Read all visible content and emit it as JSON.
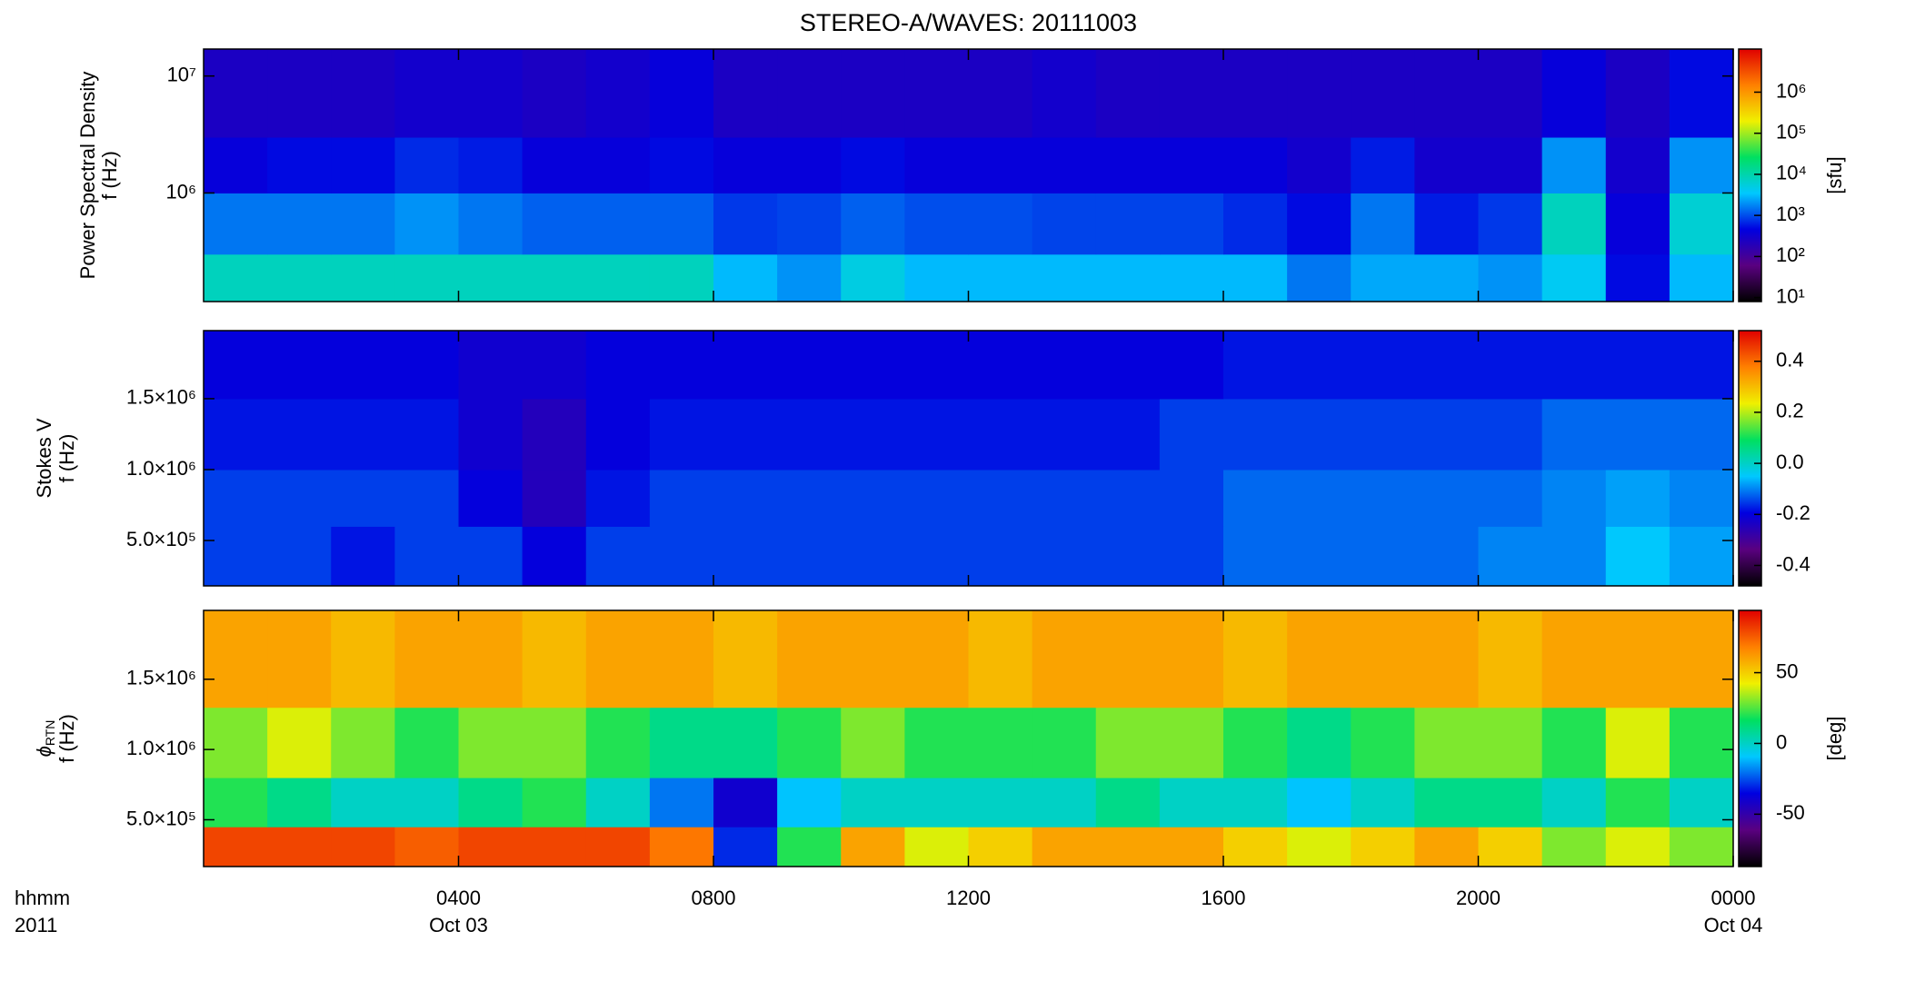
{
  "chart_data": [
    {
      "type": "heatmap",
      "title": "STEREO-A/WAVES: 20111003",
      "ylabel": [
        "Power Spectral Density",
        "f (Hz)"
      ],
      "x_edges": [
        0,
        1,
        2,
        3,
        4,
        5,
        6,
        7,
        8,
        9,
        10,
        11,
        12,
        13,
        14,
        15,
        16,
        17,
        18,
        19,
        20,
        21,
        22,
        23,
        24
      ],
      "y_edges": [
        118000,
        300000,
        1000000,
        3000000,
        17000000
      ],
      "z": [
        [
          8000,
          8000,
          8000,
          8000,
          8000,
          8000,
          8000,
          8000,
          3000,
          2000,
          5000,
          3000,
          3000,
          3000,
          3000,
          3000,
          3000,
          1500,
          2500,
          2500,
          2000,
          4000,
          500,
          3000
        ],
        [
          1500,
          1500,
          1500,
          2000,
          1500,
          1200,
          1200,
          1200,
          800,
          900,
          1200,
          1000,
          1000,
          900,
          900,
          900,
          700,
          500,
          1500,
          600,
          800,
          8000,
          400,
          6000
        ],
        [
          400,
          500,
          500,
          700,
          600,
          400,
          400,
          500,
          400,
          400,
          500,
          400,
          400,
          400,
          400,
          400,
          400,
          300,
          600,
          300,
          300,
          2000,
          300,
          2000
        ],
        [
          250,
          250,
          250,
          300,
          300,
          250,
          300,
          400,
          250,
          250,
          250,
          250,
          250,
          300,
          250,
          250,
          250,
          250,
          250,
          250,
          250,
          400,
          250,
          500
        ]
      ],
      "xlim": [
        0,
        24
      ],
      "ylim": [
        118000,
        17000000
      ],
      "ylog": true,
      "yticks": [
        {
          "value": 1000000,
          "label": "10⁶"
        },
        {
          "value": 10000000,
          "label": "10⁷"
        }
      ],
      "colormap": [
        "#000000",
        "#5a0080",
        "#0000e0",
        "#00c8ff",
        "#00e060",
        "#f0f000",
        "#ff8000",
        "#e00000"
      ],
      "colorbar": {
        "log": true,
        "clim": [
          8,
          11200000
        ],
        "label": "[sfu]",
        "ticks": [
          {
            "value": 10,
            "label": "10¹"
          },
          {
            "value": 100,
            "label": "10²"
          },
          {
            "value": 1000,
            "label": "10³"
          },
          {
            "value": 10000,
            "label": "10⁴"
          },
          {
            "value": 100000,
            "label": "10⁵"
          },
          {
            "value": 1000000,
            "label": "10⁶"
          }
        ]
      }
    },
    {
      "type": "heatmap",
      "ylabel": [
        "Stokes V",
        "f (Hz)"
      ],
      "x_edges": [
        0,
        1,
        2,
        3,
        4,
        5,
        6,
        7,
        8,
        9,
        10,
        11,
        12,
        13,
        14,
        15,
        16,
        17,
        18,
        19,
        20,
        21,
        22,
        23,
        24
      ],
      "y_edges": [
        180000,
        600000,
        1000000,
        1500000,
        1980000
      ],
      "z": [
        [
          -0.15,
          -0.15,
          -0.18,
          -0.15,
          -0.15,
          -0.2,
          -0.15,
          -0.15,
          -0.15,
          -0.15,
          -0.15,
          -0.15,
          -0.15,
          -0.15,
          -0.15,
          -0.15,
          -0.12,
          -0.12,
          -0.12,
          -0.12,
          -0.1,
          -0.1,
          -0.05,
          -0.08
        ],
        [
          -0.15,
          -0.15,
          -0.15,
          -0.15,
          -0.2,
          -0.25,
          -0.18,
          -0.15,
          -0.15,
          -0.15,
          -0.15,
          -0.15,
          -0.15,
          -0.15,
          -0.15,
          -0.15,
          -0.12,
          -0.12,
          -0.12,
          -0.12,
          -0.12,
          -0.1,
          -0.08,
          -0.1
        ],
        [
          -0.18,
          -0.18,
          -0.18,
          -0.18,
          -0.22,
          -0.25,
          -0.2,
          -0.18,
          -0.18,
          -0.18,
          -0.18,
          -0.18,
          -0.18,
          -0.18,
          -0.18,
          -0.15,
          -0.15,
          -0.15,
          -0.15,
          -0.15,
          -0.15,
          -0.12,
          -0.12,
          -0.12
        ],
        [
          -0.2,
          -0.2,
          -0.2,
          -0.2,
          -0.22,
          -0.22,
          -0.2,
          -0.2,
          -0.2,
          -0.2,
          -0.2,
          -0.2,
          -0.2,
          -0.2,
          -0.2,
          -0.2,
          -0.18,
          -0.18,
          -0.18,
          -0.18,
          -0.18,
          -0.18,
          -0.18,
          -0.18
        ]
      ],
      "xlim": [
        0,
        24
      ],
      "ylim": [
        180000,
        1980000
      ],
      "ylog": false,
      "yticks": [
        {
          "value": 500000,
          "label": "5.0×10⁵"
        },
        {
          "value": 1000000,
          "label": "1.0×10⁶"
        },
        {
          "value": 1500000,
          "label": "1.5×10⁶"
        }
      ],
      "colormap": [
        "#000000",
        "#5a0080",
        "#0000e0",
        "#00c8ff",
        "#00e060",
        "#f0f000",
        "#ff8000",
        "#e00000"
      ],
      "colorbar": {
        "log": false,
        "clim": [
          -0.48,
          0.52
        ],
        "ticks": [
          -0.4,
          -0.2,
          {
            "value": 0,
            "label": "0.0"
          },
          0.2,
          0.4
        ]
      }
    },
    {
      "type": "heatmap",
      "ylabel_symbol": "ϕ",
      "ylabel_subscript": "RTN",
      "ylabel": [
        "f (Hz)"
      ],
      "x_edges": [
        0,
        1,
        2,
        3,
        4,
        5,
        6,
        7,
        8,
        9,
        10,
        11,
        12,
        13,
        14,
        15,
        16,
        17,
        18,
        19,
        20,
        21,
        22,
        23,
        24
      ],
      "y_edges": [
        167000,
        450000,
        800000,
        1300000,
        1990000
      ],
      "z": [
        [
          80,
          80,
          80,
          75,
          80,
          80,
          80,
          70,
          -30,
          20,
          60,
          40,
          50,
          60,
          60,
          60,
          50,
          40,
          50,
          60,
          50,
          30,
          40,
          30
        ],
        [
          20,
          10,
          0,
          0,
          10,
          20,
          0,
          -20,
          -40,
          -10,
          0,
          0,
          0,
          0,
          10,
          0,
          0,
          -10,
          0,
          10,
          10,
          0,
          20,
          0
        ],
        [
          30,
          40,
          30,
          20,
          30,
          30,
          20,
          10,
          10,
          20,
          30,
          20,
          20,
          20,
          30,
          30,
          20,
          10,
          20,
          30,
          30,
          20,
          40,
          20
        ],
        [
          60,
          60,
          55,
          60,
          60,
          55,
          60,
          60,
          55,
          60,
          60,
          60,
          55,
          60,
          60,
          60,
          55,
          60,
          60,
          60,
          55,
          60,
          60,
          60
        ]
      ],
      "xlim": [
        0,
        24
      ],
      "ylim": [
        167000,
        1990000
      ],
      "ylog": false,
      "yticks": [
        {
          "value": 500000,
          "label": "5.0×10⁵"
        },
        {
          "value": 1000000,
          "label": "1.0×10⁶"
        },
        {
          "value": 1500000,
          "label": "1.5×10⁶"
        }
      ],
      "xticks": [
        {
          "value": 4,
          "label": "0400"
        },
        {
          "value": 8,
          "label": "0800"
        },
        {
          "value": 12,
          "label": "1200"
        },
        {
          "value": 16,
          "label": "1600"
        },
        {
          "value": 20,
          "label": "2000"
        },
        {
          "value": 24,
          "label": "0000"
        }
      ],
      "xtick_dates": [
        {
          "value": 4,
          "label": "Oct 03"
        },
        {
          "value": 24,
          "label": "Oct 04"
        }
      ],
      "xlabel": [
        "hhmm",
        "2011"
      ],
      "colormap": [
        "#000000",
        "#5a0080",
        "#0000e0",
        "#00c8ff",
        "#00e060",
        "#f0f000",
        "#ff8000",
        "#e00000"
      ],
      "colorbar": {
        "log": false,
        "clim": [
          -87,
          94
        ],
        "label": "[deg]",
        "ticks": [
          -50,
          0,
          50
        ]
      }
    }
  ]
}
